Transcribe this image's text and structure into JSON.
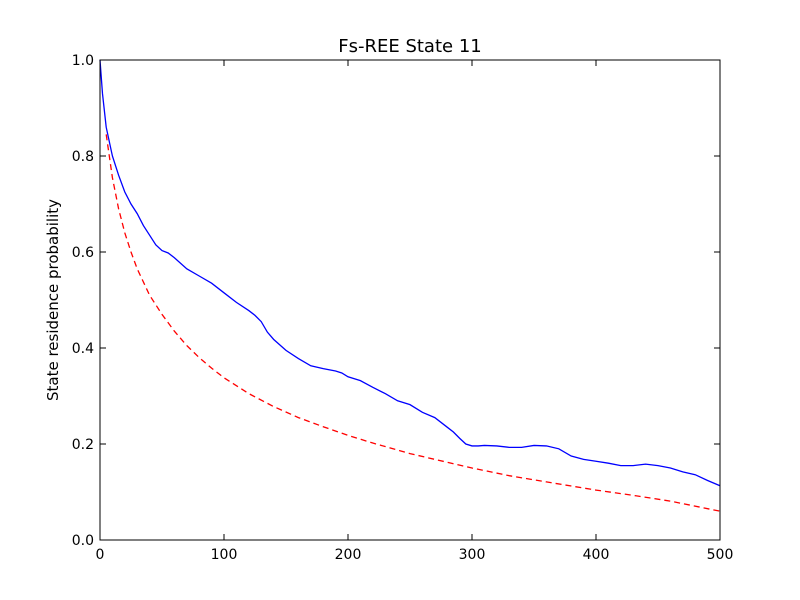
{
  "chart_data": {
    "type": "line",
    "title": "Fs-REE State 11",
    "xlabel": "",
    "ylabel": "State residence probability",
    "xlim": [
      0,
      500
    ],
    "ylim": [
      0.0,
      1.0
    ],
    "grid": false,
    "x_ticks": [
      "0",
      "100",
      "200",
      "300",
      "400",
      "500"
    ],
    "y_ticks": [
      "0.0",
      "0.2",
      "0.4",
      "0.6",
      "0.8",
      "1.0"
    ],
    "series": [
      {
        "color": "#0000ff",
        "style": "solid",
        "x": [
          0,
          2,
          5,
          10,
          15,
          20,
          25,
          30,
          35,
          40,
          45,
          50,
          55,
          60,
          70,
          80,
          90,
          100,
          110,
          120,
          125,
          130,
          135,
          140,
          150,
          160,
          170,
          180,
          190,
          195,
          200,
          210,
          220,
          230,
          240,
          250,
          260,
          270,
          280,
          285,
          290,
          295,
          300,
          305,
          310,
          320,
          330,
          340,
          350,
          360,
          370,
          380,
          390,
          400,
          410,
          420,
          430,
          440,
          450,
          460,
          470,
          480,
          490,
          500
        ],
        "y": [
          1.0,
          0.93,
          0.86,
          0.8,
          0.76,
          0.725,
          0.7,
          0.68,
          0.655,
          0.635,
          0.615,
          0.603,
          0.598,
          0.588,
          0.565,
          0.55,
          0.535,
          0.515,
          0.495,
          0.478,
          0.468,
          0.455,
          0.433,
          0.418,
          0.395,
          0.378,
          0.363,
          0.357,
          0.352,
          0.348,
          0.34,
          0.332,
          0.318,
          0.305,
          0.29,
          0.282,
          0.266,
          0.255,
          0.235,
          0.225,
          0.212,
          0.2,
          0.196,
          0.196,
          0.197,
          0.196,
          0.193,
          0.193,
          0.197,
          0.196,
          0.19,
          0.175,
          0.168,
          0.164,
          0.16,
          0.155,
          0.155,
          0.158,
          0.155,
          0.15,
          0.142,
          0.136,
          0.124,
          0.113
        ]
      },
      {
        "color": "#ff0000",
        "style": "dashed",
        "x": [
          5,
          10,
          15,
          20,
          25,
          30,
          40,
          50,
          60,
          70,
          80,
          90,
          100,
          120,
          140,
          160,
          180,
          200,
          220,
          250,
          280,
          300,
          330,
          360,
          400,
          430,
          460,
          500
        ],
        "y": [
          0.845,
          0.755,
          0.69,
          0.64,
          0.6,
          0.565,
          0.51,
          0.47,
          0.435,
          0.405,
          0.38,
          0.358,
          0.338,
          0.305,
          0.278,
          0.255,
          0.236,
          0.218,
          0.202,
          0.18,
          0.162,
          0.15,
          0.134,
          0.121,
          0.104,
          0.093,
          0.081,
          0.06
        ]
      }
    ]
  }
}
